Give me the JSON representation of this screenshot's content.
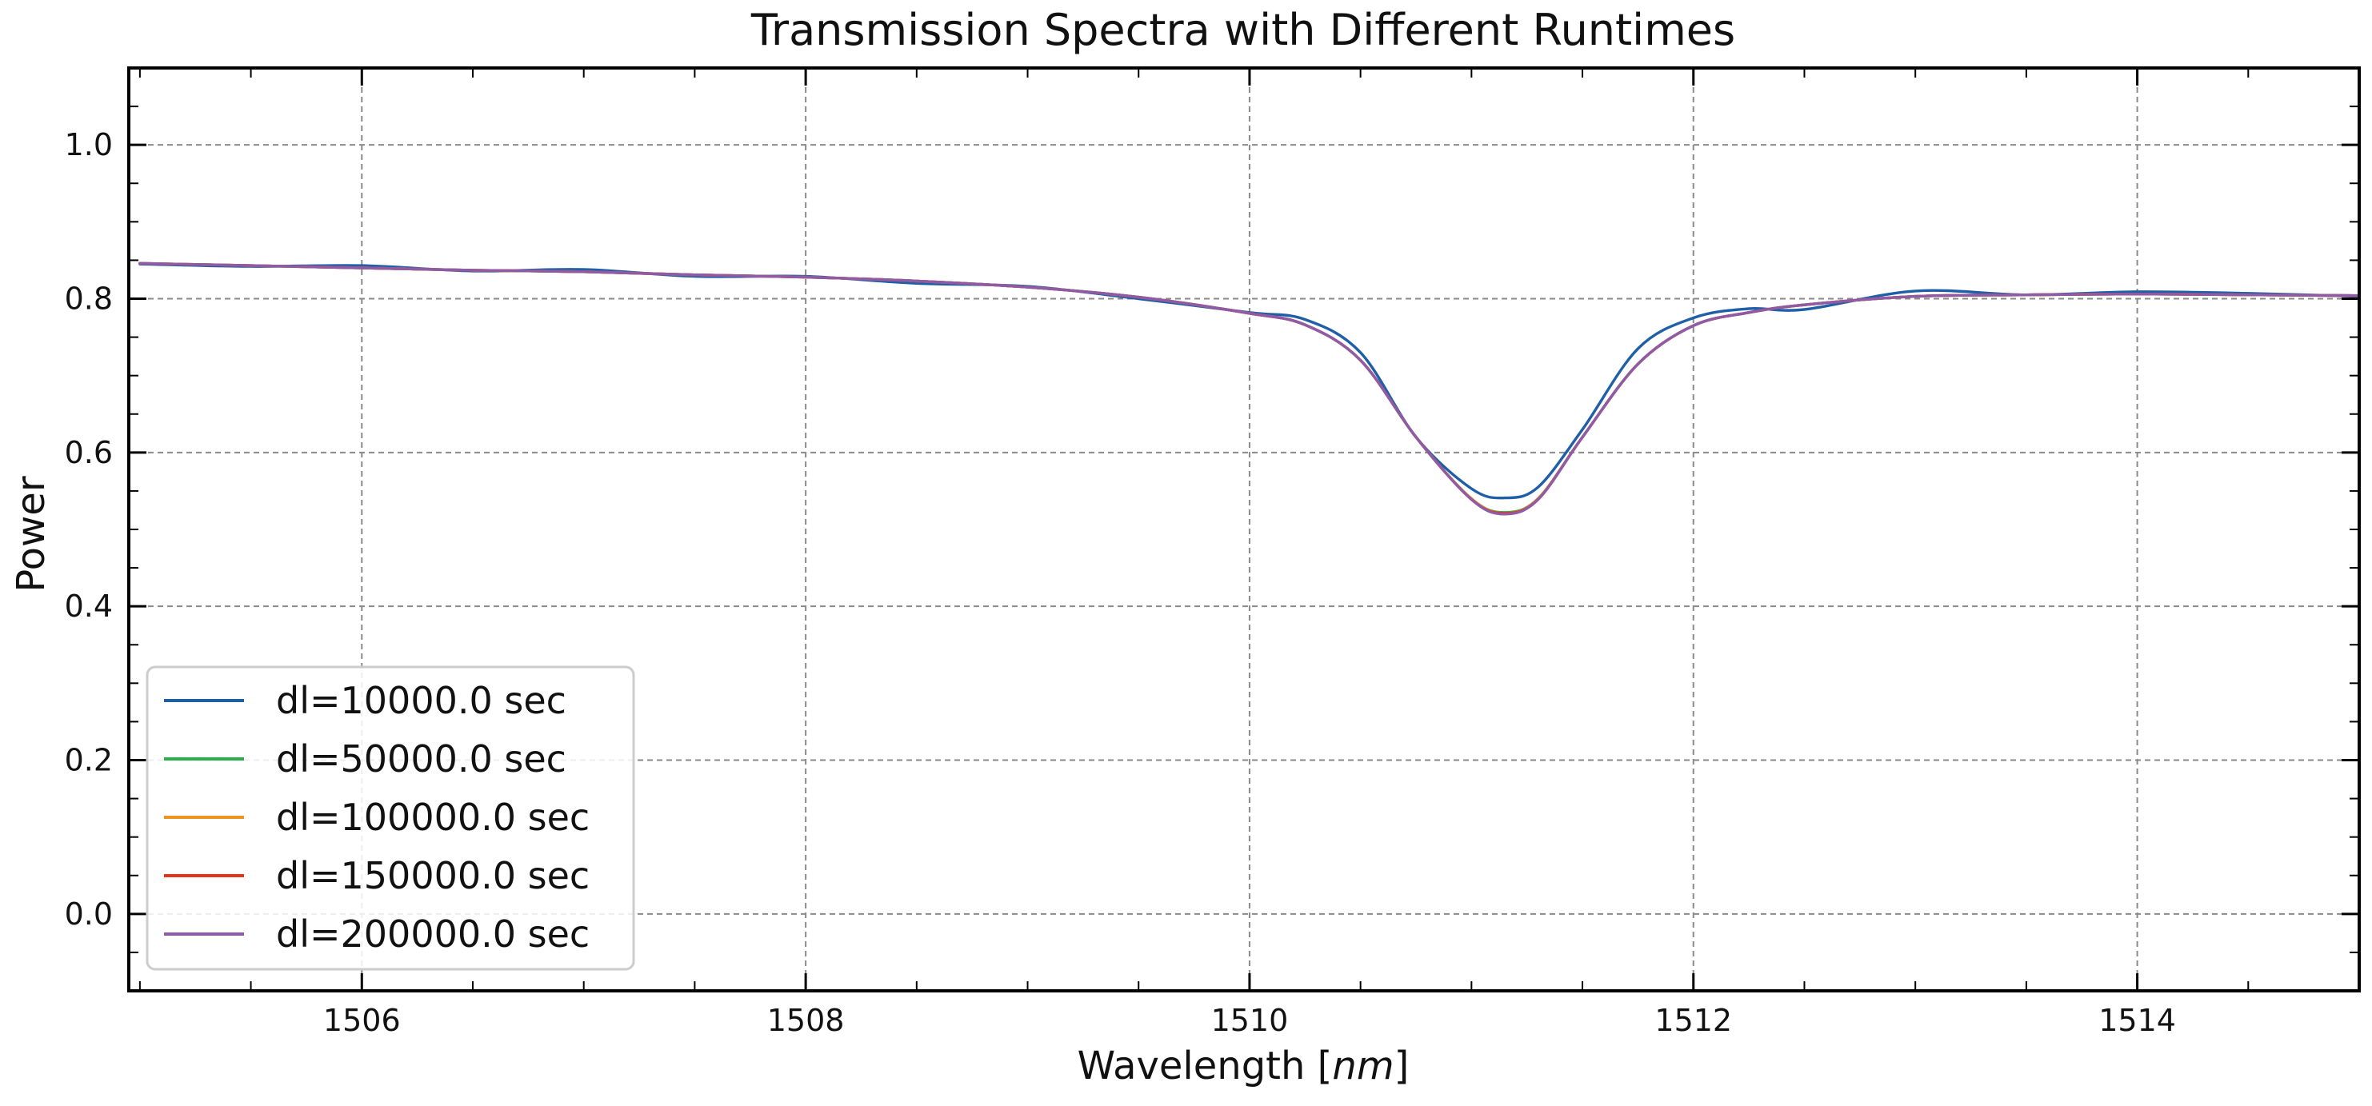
{
  "chart_data": {
    "type": "line",
    "title": "Transmission Spectra with Different Runtimes",
    "xlabel": "Wavelength [",
    "xlabel_italic": "nm",
    "xlabel_suffix": "]",
    "ylabel": "Power",
    "xlim": [
      1504.95,
      1515.0
    ],
    "ylim": [
      -0.1,
      1.1
    ],
    "xticks": [
      1506,
      1508,
      1510,
      1512,
      1514
    ],
    "xtick_labels": [
      "1506",
      "1508",
      "1510",
      "1512",
      "1514"
    ],
    "yticks": [
      0.0,
      0.2,
      0.4,
      0.6,
      0.8,
      1.0
    ],
    "ytick_labels": [
      "0.0",
      "0.2",
      "0.4",
      "0.6",
      "0.8",
      "1.0"
    ],
    "grid": true,
    "legend_position": "lower-left",
    "x": [
      1505.0,
      1505.5,
      1506.0,
      1506.5,
      1507.0,
      1507.5,
      1508.0,
      1508.5,
      1509.0,
      1509.5,
      1510.0,
      1510.25,
      1510.5,
      1510.75,
      1511.0,
      1511.15,
      1511.3,
      1511.5,
      1511.75,
      1512.0,
      1512.25,
      1512.5,
      1513.0,
      1513.5,
      1514.0,
      1514.5,
      1515.0
    ],
    "series": [
      {
        "name": "dl=10000.0 sec",
        "color": "#1f5fa8",
        "values": [
          0.845,
          0.842,
          0.843,
          0.836,
          0.838,
          0.829,
          0.829,
          0.82,
          0.816,
          0.8,
          0.782,
          0.773,
          0.73,
          0.62,
          0.553,
          0.541,
          0.555,
          0.63,
          0.735,
          0.775,
          0.787,
          0.786,
          0.81,
          0.805,
          0.809,
          0.807,
          0.803
        ]
      },
      {
        "name": "dl=50000.0 sec",
        "color": "#2ab04a",
        "values": [
          0.846,
          0.843,
          0.84,
          0.837,
          0.835,
          0.831,
          0.828,
          0.823,
          0.815,
          0.802,
          0.781,
          0.766,
          0.72,
          0.62,
          0.54,
          0.522,
          0.54,
          0.62,
          0.715,
          0.765,
          0.782,
          0.792,
          0.803,
          0.805,
          0.806,
          0.805,
          0.804
        ]
      },
      {
        "name": "dl=100000.0 sec",
        "color": "#f0921e",
        "values": [
          0.846,
          0.843,
          0.84,
          0.837,
          0.835,
          0.831,
          0.828,
          0.823,
          0.815,
          0.802,
          0.781,
          0.766,
          0.72,
          0.62,
          0.54,
          0.521,
          0.54,
          0.62,
          0.715,
          0.765,
          0.782,
          0.792,
          0.803,
          0.805,
          0.806,
          0.805,
          0.804
        ]
      },
      {
        "name": "dl=150000.0 sec",
        "color": "#e63219",
        "values": [
          0.846,
          0.843,
          0.84,
          0.837,
          0.835,
          0.831,
          0.828,
          0.823,
          0.815,
          0.802,
          0.781,
          0.766,
          0.72,
          0.62,
          0.539,
          0.521,
          0.539,
          0.62,
          0.715,
          0.765,
          0.782,
          0.792,
          0.803,
          0.805,
          0.806,
          0.805,
          0.804
        ]
      },
      {
        "name": "dl=200000.0 sec",
        "color": "#8f5aa6",
        "values": [
          0.846,
          0.843,
          0.84,
          0.837,
          0.835,
          0.831,
          0.828,
          0.823,
          0.815,
          0.802,
          0.781,
          0.766,
          0.72,
          0.62,
          0.539,
          0.52,
          0.539,
          0.62,
          0.715,
          0.765,
          0.782,
          0.792,
          0.803,
          0.805,
          0.806,
          0.805,
          0.804
        ]
      }
    ]
  }
}
